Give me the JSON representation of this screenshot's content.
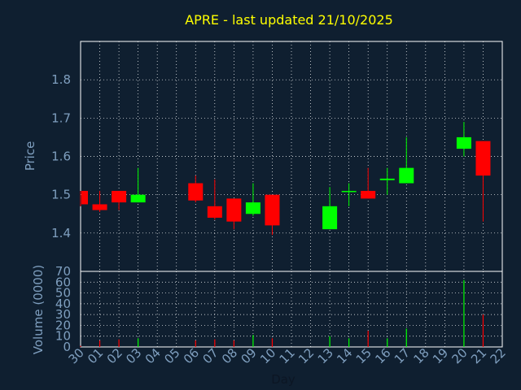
{
  "chart_data": {
    "type": "candlestick",
    "title": "APRE - last updated 21/10/2025",
    "xlabel": "Day",
    "price_ylabel": "Price",
    "volume_ylabel": "Volume (0000)",
    "x_ticks": [
      "30",
      "01",
      "02",
      "03",
      "04",
      "05",
      "06",
      "07",
      "08",
      "09",
      "10",
      "11",
      "12",
      "13",
      "14",
      "15",
      "16",
      "17",
      "18",
      "19",
      "20",
      "21",
      "22"
    ],
    "price_ylim": [
      1.3,
      1.9
    ],
    "price_ticks": [
      "1.4",
      "1.5",
      "1.6",
      "1.7",
      "1.8"
    ],
    "volume_ylim": [
      0,
      70
    ],
    "volume_ticks": [
      "0",
      "10",
      "20",
      "30",
      "40",
      "50",
      "60",
      "70"
    ],
    "grid": true,
    "colors": {
      "up": "#00ff00",
      "down": "#ff0000",
      "background": "#0f1f30",
      "plot_background": "#0f1f30",
      "grid": "#ffffff",
      "title": "#ffff00",
      "axis_text": "#7f9fbf"
    },
    "candles": [
      {
        "day": "30",
        "open": 1.51,
        "high": 1.51,
        "low": 1.47,
        "close": 1.475
      },
      {
        "day": "01",
        "open": 1.475,
        "high": 1.51,
        "low": 1.455,
        "close": 1.46
      },
      {
        "day": "02",
        "open": 1.51,
        "high": 1.51,
        "low": 1.46,
        "close": 1.48
      },
      {
        "day": "03",
        "open": 1.48,
        "high": 1.57,
        "low": 1.48,
        "close": 1.5
      },
      {
        "day": "06",
        "open": 1.53,
        "high": 1.55,
        "low": 1.48,
        "close": 1.485
      },
      {
        "day": "07",
        "open": 1.47,
        "high": 1.54,
        "low": 1.435,
        "close": 1.44
      },
      {
        "day": "08",
        "open": 1.49,
        "high": 1.49,
        "low": 1.41,
        "close": 1.43
      },
      {
        "day": "09",
        "open": 1.45,
        "high": 1.53,
        "low": 1.445,
        "close": 1.48
      },
      {
        "day": "10",
        "open": 1.5,
        "high": 1.5,
        "low": 1.395,
        "close": 1.42
      },
      {
        "day": "13",
        "open": 1.41,
        "high": 1.52,
        "low": 1.41,
        "close": 1.47
      },
      {
        "day": "14",
        "open": 1.508,
        "high": 1.53,
        "low": 1.47,
        "close": 1.51
      },
      {
        "day": "15",
        "open": 1.51,
        "high": 1.57,
        "low": 1.49,
        "close": 1.49
      },
      {
        "day": "16",
        "open": 1.538,
        "high": 1.57,
        "low": 1.5,
        "close": 1.542
      },
      {
        "day": "17",
        "open": 1.53,
        "high": 1.65,
        "low": 1.53,
        "close": 1.57
      },
      {
        "day": "20",
        "open": 1.62,
        "high": 1.69,
        "low": 1.6,
        "close": 1.65
      },
      {
        "day": "21",
        "open": 1.64,
        "high": 1.64,
        "low": 1.43,
        "close": 1.55
      }
    ],
    "volume": [
      {
        "day": "30",
        "value": 1,
        "dir": "down"
      },
      {
        "day": "01",
        "value": 6,
        "dir": "down"
      },
      {
        "day": "02",
        "value": 7,
        "dir": "down"
      },
      {
        "day": "03",
        "value": 8,
        "dir": "up"
      },
      {
        "day": "06",
        "value": 6,
        "dir": "down"
      },
      {
        "day": "07",
        "value": 7,
        "dir": "down"
      },
      {
        "day": "08",
        "value": 6,
        "dir": "down"
      },
      {
        "day": "09",
        "value": 11,
        "dir": "up"
      },
      {
        "day": "10",
        "value": 8,
        "dir": "down"
      },
      {
        "day": "13",
        "value": 10,
        "dir": "up"
      },
      {
        "day": "14",
        "value": 8,
        "dir": "up"
      },
      {
        "day": "15",
        "value": 15,
        "dir": "down"
      },
      {
        "day": "16",
        "value": 8,
        "dir": "up"
      },
      {
        "day": "17",
        "value": 17,
        "dir": "up"
      },
      {
        "day": "20",
        "value": 62,
        "dir": "up"
      },
      {
        "day": "21",
        "value": 30,
        "dir": "down"
      }
    ]
  }
}
